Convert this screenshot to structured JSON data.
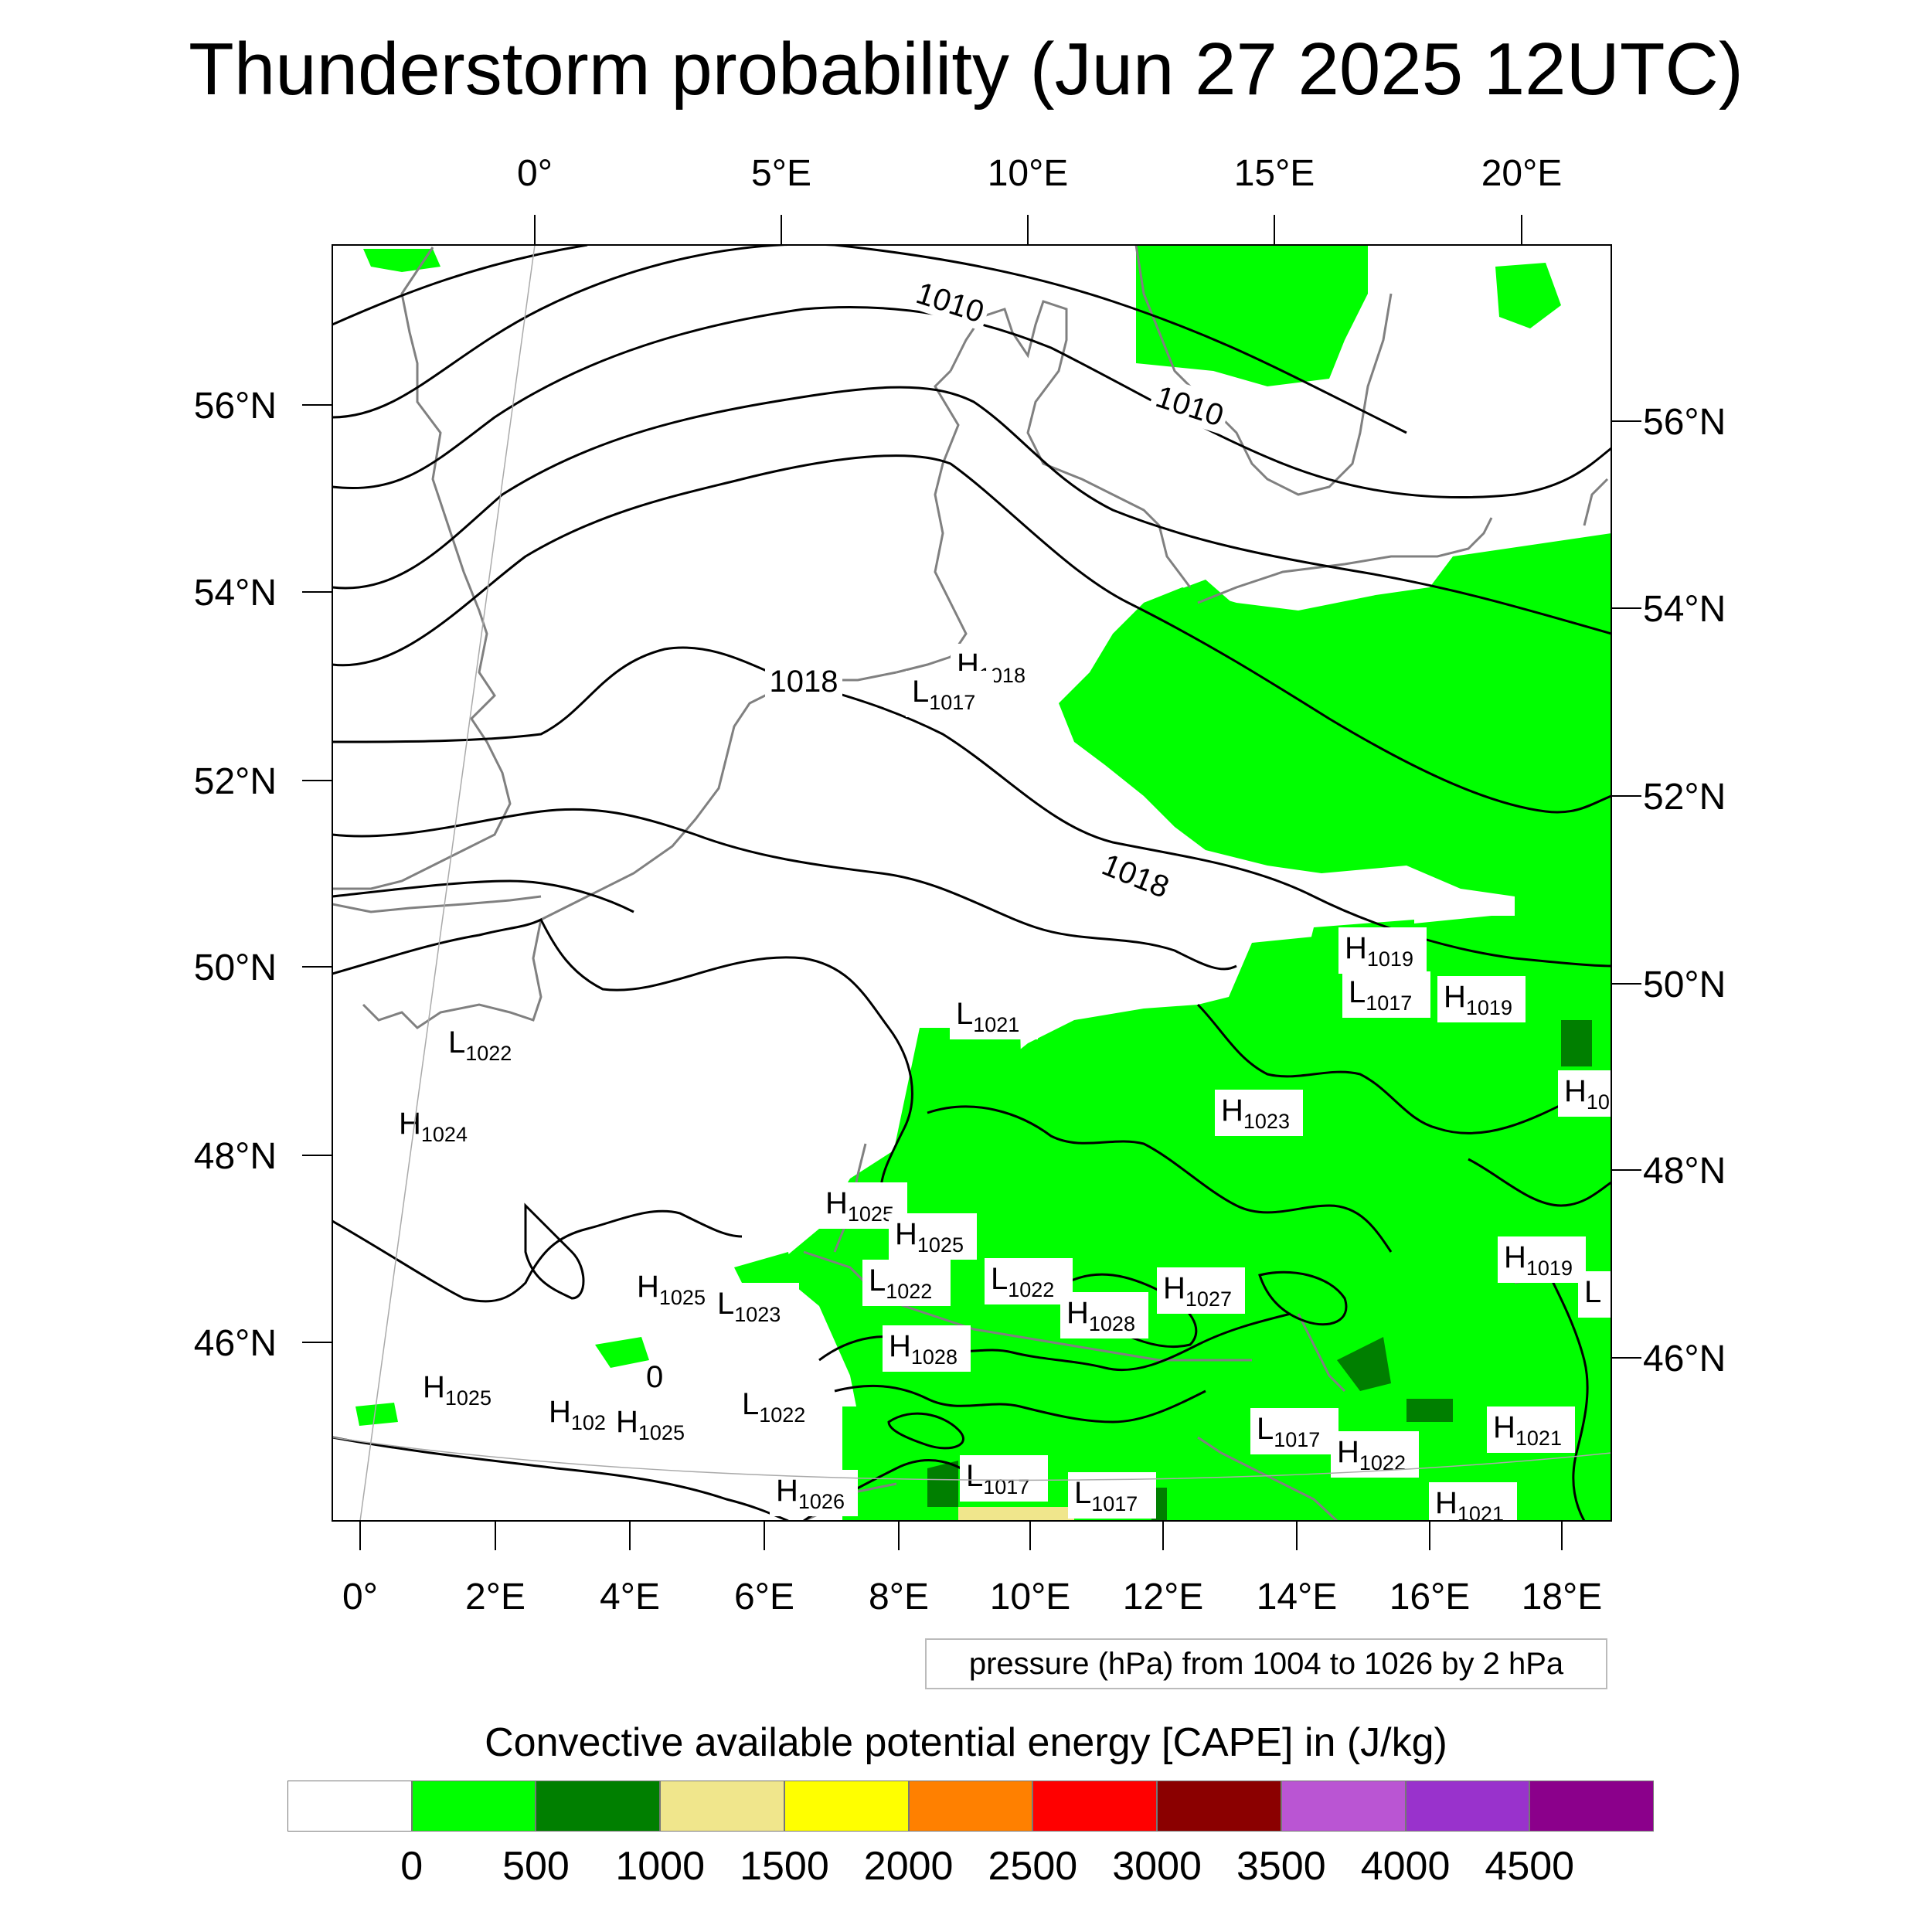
{
  "title": "Thunderstorm probability (Jun 27 2025 12UTC)",
  "top_lon_labels": [
    "0°",
    "5°E",
    "10°E",
    "15°E",
    "20°E"
  ],
  "bottom_lon_labels": [
    "0°",
    "2°E",
    "4°E",
    "6°E",
    "8°E",
    "10°E",
    "12°E",
    "14°E",
    "16°E",
    "18°E"
  ],
  "left_lat_labels": [
    "56°N",
    "54°N",
    "52°N",
    "50°N",
    "48°N",
    "46°N"
  ],
  "right_lat_labels": [
    "56°N",
    "54°N",
    "52°N",
    "50°N",
    "48°N",
    "46°N"
  ],
  "contour_labels": [
    "1010",
    "1010",
    "1018",
    "1018"
  ],
  "pressure_centers": [
    {
      "letter": "H",
      "value": "1018"
    },
    {
      "letter": "L",
      "value": "1017"
    },
    {
      "letter": "H",
      "value": "1019"
    },
    {
      "letter": "L",
      "value": "1017"
    },
    {
      "letter": "H",
      "value": "1019"
    },
    {
      "letter": "L",
      "value": "1021"
    },
    {
      "letter": "L",
      "value": "1022"
    },
    {
      "letter": "H",
      "value": "1024"
    },
    {
      "letter": "H",
      "value": "1023"
    },
    {
      "letter": "H",
      "value": "10"
    },
    {
      "letter": "H",
      "value": "1025"
    },
    {
      "letter": "H",
      "value": "1025"
    },
    {
      "letter": "H",
      "value": "1025"
    },
    {
      "letter": "L",
      "value": "1023"
    },
    {
      "letter": "L",
      "value": "1022"
    },
    {
      "letter": "L",
      "value": "1022"
    },
    {
      "letter": "H",
      "value": "1028"
    },
    {
      "letter": "H",
      "value": "1027"
    },
    {
      "letter": "H",
      "value": "1028"
    },
    {
      "letter": "H",
      "value": "1019"
    },
    {
      "letter": "L",
      "value": ""
    },
    {
      "letter": "H",
      "value": "1025"
    },
    {
      "letter": "H",
      "value": "102"
    },
    {
      "letter": "H",
      "value": "1025"
    },
    {
      "letter": "L",
      "value": "1022"
    },
    {
      "letter": "L",
      "value": "1017"
    },
    {
      "letter": "H",
      "value": "1022"
    },
    {
      "letter": "H",
      "value": "1021"
    },
    {
      "letter": "H",
      "value": "1026"
    },
    {
      "letter": "L",
      "value": "1017"
    },
    {
      "letter": "L",
      "value": "1017"
    },
    {
      "letter": "H",
      "value": "1021"
    }
  ],
  "contour_extra_label": "0",
  "info_box": "pressure (hPa) from 1004 to 1026 by 2 hPa",
  "colorbar_title": "Convective available potential energy [CAPE] in (J/kg)",
  "colorbar_colors": [
    "#ffffff",
    "#00ff00",
    "#007f00",
    "#f0e68c",
    "#ffff00",
    "#ff8000",
    "#ff0000",
    "#8b0000",
    "#ba55d3",
    "#9932cc",
    "#8b008b"
  ],
  "colorbar_labels": [
    "0",
    "500",
    "1000",
    "1500",
    "2000",
    "2500",
    "3000",
    "3500",
    "4000",
    "4500"
  ]
}
